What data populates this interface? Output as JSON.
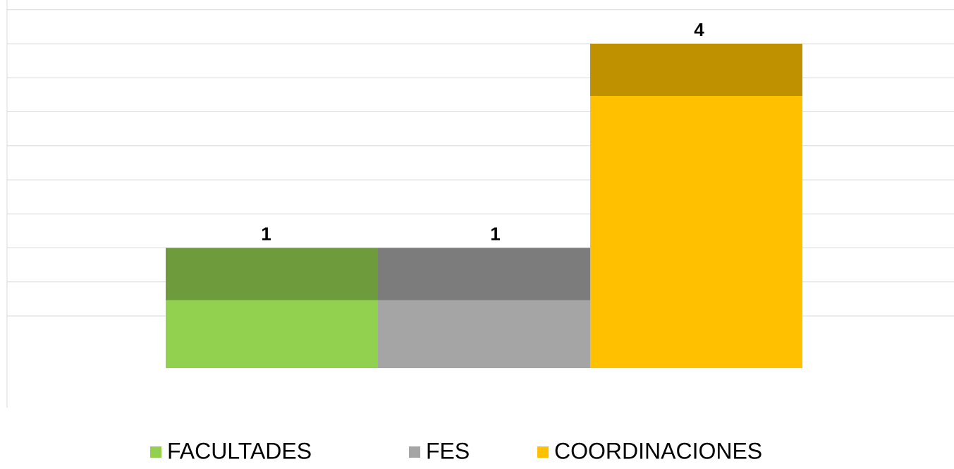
{
  "chart_data": {
    "type": "bar3d",
    "categories": [
      null
    ],
    "series": [
      {
        "name": "FACULTADES",
        "color": "#92d050",
        "values": [
          1
        ]
      },
      {
        "name": "FES",
        "color": "#a5a5a5",
        "values": [
          1
        ]
      },
      {
        "name": "COORDINACIONES",
        "color": "#ffc000",
        "values": [
          4
        ]
      }
    ],
    "ylim": [
      0,
      4.5
    ],
    "yticks": [
      0,
      0.5,
      1,
      1.5,
      2,
      2.5,
      3,
      3.5,
      4,
      4.5
    ],
    "grid": true,
    "legend": "bottom"
  }
}
